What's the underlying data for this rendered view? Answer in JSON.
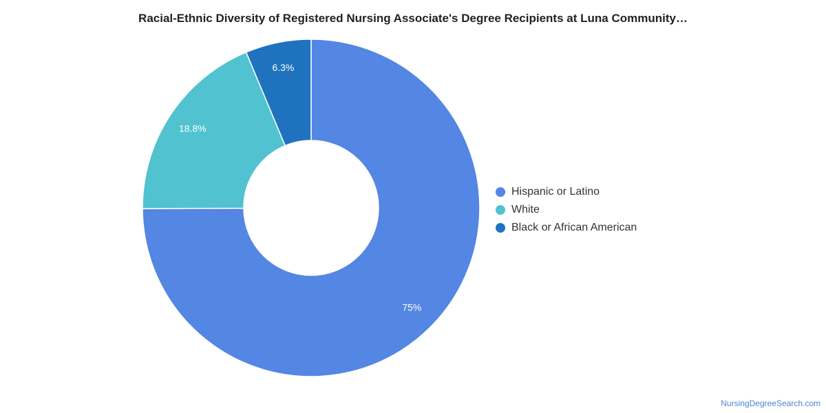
{
  "chart_data": {
    "type": "pie",
    "variant": "donut",
    "title": "Racial-Ethnic Diversity of Registered Nursing Associate's Degree Recipients at Luna Community…",
    "slices": [
      {
        "label": "Hispanic or Latino",
        "value": 75,
        "display": "75%",
        "color": "#5486e3"
      },
      {
        "label": "White",
        "value": 18.8,
        "display": "18.8%",
        "color": "#51c2cf"
      },
      {
        "label": "Black or African American",
        "value": 6.3,
        "display": "6.3%",
        "color": "#1f73be"
      }
    ],
    "legend_position": "right"
  },
  "footer": {
    "credit": "NursingDegreeSearch.com"
  }
}
